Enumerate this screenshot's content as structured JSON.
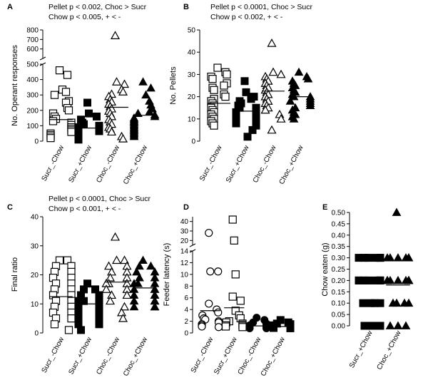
{
  "chart_data": [
    {
      "id": "A",
      "type": "scatter",
      "panel_label": "A",
      "stats": [
        "Pellet p < 0.002, Choc > Sucr",
        "Chow p < 0.005, + < -"
      ],
      "ylabel": "No. Operant responses",
      "categories": [
        "Sucr_-Chow",
        "Sucr_+Chow",
        "Choc_-Chow",
        "Choc_+Chow"
      ],
      "markers": [
        "open-square",
        "filled-square",
        "open-triangle",
        "filled-triangle"
      ],
      "axis_broken": true,
      "ylim_lower": [
        0,
        500
      ],
      "ylim_upper": [
        500,
        800
      ],
      "yticks_lower": [
        0,
        100,
        200,
        300,
        400,
        500
      ],
      "yticks_upper": [
        600,
        700,
        800
      ],
      "means": [
        140,
        85,
        220,
        168
      ],
      "series": [
        {
          "name": "Sucr_-Chow",
          "values": [
            460,
            430,
            335,
            320,
            300,
            260,
            250,
            215,
            200,
            180,
            160,
            145,
            130,
            120,
            105,
            90,
            80,
            70,
            60,
            50,
            40,
            30,
            20
          ]
        },
        {
          "name": "Sucr_+Chow",
          "values": [
            250,
            180,
            160,
            140,
            120,
            110,
            100,
            95,
            90,
            85,
            80,
            75,
            70,
            65,
            60,
            55,
            50,
            45,
            40,
            35,
            30,
            25,
            20,
            15,
            10
          ]
        },
        {
          "name": "Choc_-Chow",
          "values": [
            740,
            385,
            370,
            335,
            320,
            305,
            290,
            270,
            255,
            240,
            225,
            210,
            195,
            180,
            160,
            140,
            125,
            110,
            90,
            80,
            60,
            30,
            15
          ]
        },
        {
          "name": "Choc_+Chow",
          "values": [
            385,
            345,
            300,
            260,
            235,
            210,
            190,
            180,
            170,
            160,
            150,
            140,
            130,
            120,
            110,
            100,
            90,
            80,
            70,
            60,
            50,
            40,
            30
          ]
        }
      ]
    },
    {
      "id": "B",
      "type": "scatter",
      "panel_label": "B",
      "stats": [
        "Pellet p < 0.0001, Choc > Sucr",
        "Chow p < 0.002, + < -"
      ],
      "ylabel": "No. Pellets",
      "categories": [
        "Sucr_-Chow",
        "Sucr_+Chow",
        "Choc_-Chow",
        "Choc_+Chow"
      ],
      "markers": [
        "open-square",
        "filled-square",
        "open-triangle",
        "filled-triangle"
      ],
      "ylim": [
        0,
        50
      ],
      "yticks": [
        0,
        10,
        20,
        30,
        40,
        50
      ],
      "means": [
        17,
        13.5,
        22.5,
        20
      ],
      "series": [
        {
          "name": "Sucr_-Chow",
          "values": [
            33,
            31,
            30,
            29,
            28,
            26,
            25,
            24,
            23,
            21,
            20,
            19,
            18,
            17,
            16,
            15,
            14,
            13,
            12,
            11,
            10,
            9,
            8,
            7
          ]
        },
        {
          "name": "Sucr_+Chow",
          "values": [
            27,
            22,
            20,
            19,
            18,
            17,
            16,
            15,
            15,
            14,
            13,
            13,
            12,
            12,
            11,
            11,
            10,
            10,
            9,
            9,
            8,
            7,
            5,
            2
          ]
        },
        {
          "name": "Choc_-Chow",
          "values": [
            44,
            31,
            30,
            29,
            28,
            27,
            26,
            25,
            24,
            23,
            22,
            21,
            20,
            19,
            18,
            17,
            16,
            15,
            14,
            12,
            10,
            5
          ]
        },
        {
          "name": "Choc_+Chow",
          "values": [
            31,
            29,
            28,
            27,
            26,
            25,
            24,
            23,
            22,
            21,
            20,
            20,
            19,
            18,
            18,
            17,
            16,
            15,
            14,
            13,
            12,
            11,
            10
          ]
        }
      ]
    },
    {
      "id": "C",
      "type": "scatter",
      "panel_label": "C",
      "stats": [
        "Pellet p < 0.0001, Choc > Sucr",
        "Chow p < 0.001, + < -"
      ],
      "ylabel": "Final ratio",
      "categories": [
        "Sucr_-Chow",
        "Sucr_+Chow",
        "Choc_-Chow",
        "Choc_+Chow"
      ],
      "markers": [
        "open-square",
        "filled-square",
        "open-triangle",
        "filled-triangle"
      ],
      "ylim": [
        0,
        40
      ],
      "yticks": [
        0,
        10,
        20,
        30,
        40
      ],
      "means": [
        12.5,
        10,
        17.5,
        15.5
      ],
      "series": [
        {
          "name": "Sucr_-Chow",
          "values": [
            25,
            25,
            23,
            23,
            21,
            21,
            19,
            19,
            17,
            17,
            15,
            15,
            13,
            13,
            11,
            11,
            9,
            9,
            7,
            7,
            5,
            5,
            3,
            1
          ]
        },
        {
          "name": "Sucr_+Chow",
          "values": [
            17,
            15,
            15,
            13,
            13,
            11,
            11,
            11,
            9,
            9,
            9,
            9,
            9,
            7,
            7,
            7,
            5,
            5,
            5,
            3,
            3,
            1
          ]
        },
        {
          "name": "Choc_-Chow",
          "values": [
            33,
            25,
            25,
            23,
            23,
            21,
            21,
            19,
            19,
            17,
            17,
            17,
            15,
            15,
            13,
            13,
            11,
            9,
            7,
            5
          ]
        },
        {
          "name": "Choc_+Chow",
          "values": [
            25,
            23,
            23,
            21,
            21,
            19,
            19,
            17,
            17,
            17,
            15,
            15,
            15,
            13,
            13,
            13,
            11,
            11,
            11,
            9,
            9,
            9
          ]
        }
      ]
    },
    {
      "id": "D",
      "type": "scatter",
      "panel_label": "D",
      "ylabel": "Feeder latency (s)",
      "categories": [
        "Sucr_-Chow",
        "Sucr_+Chow",
        "Choc_-Chow",
        "Choc_+Chow"
      ],
      "markers": [
        "open-circle",
        "open-square",
        "filled-circle",
        "filled-square"
      ],
      "axis_broken": true,
      "ylim_lower": [
        0,
        14
      ],
      "ylim_upper": [
        15,
        45
      ],
      "yticks_lower": [
        0,
        2,
        4,
        6,
        8,
        10,
        12,
        14
      ],
      "yticks_upper": [
        20,
        30,
        40
      ],
      "means": [
        3.8,
        4.3,
        1.2,
        1.1
      ],
      "series": [
        {
          "name": "Sucr_-Chow",
          "values": [
            28,
            10.5,
            10.5,
            5,
            4,
            3.5,
            3,
            2.5,
            2.3,
            2,
            1.8,
            1.5,
            1.3,
            1.1,
            1
          ]
        },
        {
          "name": "Sucr_+Chow",
          "values": [
            42,
            20,
            10,
            6.2,
            5.5,
            3.8,
            3,
            2.5,
            2,
            1.8,
            1.6,
            1.4,
            1.3,
            1.2,
            1.1,
            1
          ]
        },
        {
          "name": "Choc_-Chow",
          "values": [
            2.6,
            2.2,
            1.8,
            1.6,
            1.4,
            1.3,
            1.2,
            1.1,
            1,
            1,
            0.9,
            0.9,
            0.8,
            0.8
          ]
        },
        {
          "name": "Choc_+Chow",
          "values": [
            2.2,
            1.8,
            1.6,
            1.5,
            1.3,
            1.2,
            1.1,
            1.05,
            1,
            1,
            0.9,
            0.85,
            0.8
          ]
        }
      ]
    },
    {
      "id": "E",
      "type": "scatter",
      "panel_label": "E",
      "ylabel": "Chow eaten (g)",
      "categories": [
        "Sucr_+Chow",
        "Choc_+Chow"
      ],
      "markers": [
        "filled-square",
        "filled-triangle"
      ],
      "ylim": [
        0,
        0.5
      ],
      "yticks": [
        0.0,
        0.05,
        0.1,
        0.15,
        0.2,
        0.25,
        0.3,
        0.35,
        0.4,
        0.45,
        0.5
      ],
      "ytick_labels": [
        "0.00",
        "0.05",
        "0.10",
        "0.15",
        "0.20",
        "0.25",
        "0.30",
        "0.35",
        "0.40",
        "0.45",
        "0.50"
      ],
      "means": [
        0.185,
        0.18
      ],
      "series": [
        {
          "name": "Sucr_+Chow",
          "values": [
            0.3,
            0.3,
            0.3,
            0.3,
            0.3,
            0.3,
            0.2,
            0.2,
            0.2,
            0.2,
            0.2,
            0.2,
            0.2,
            0.2,
            0.1,
            0.1,
            0.1,
            0.1,
            0,
            0,
            0,
            0
          ]
        },
        {
          "name": "Choc_+Chow",
          "values": [
            0.5,
            0.3,
            0.3,
            0.3,
            0.3,
            0.3,
            0.3,
            0.2,
            0.2,
            0.2,
            0.2,
            0.2,
            0.2,
            0.2,
            0.2,
            0.1,
            0.1,
            0.1,
            0.1,
            0,
            0,
            0
          ]
        }
      ]
    }
  ]
}
